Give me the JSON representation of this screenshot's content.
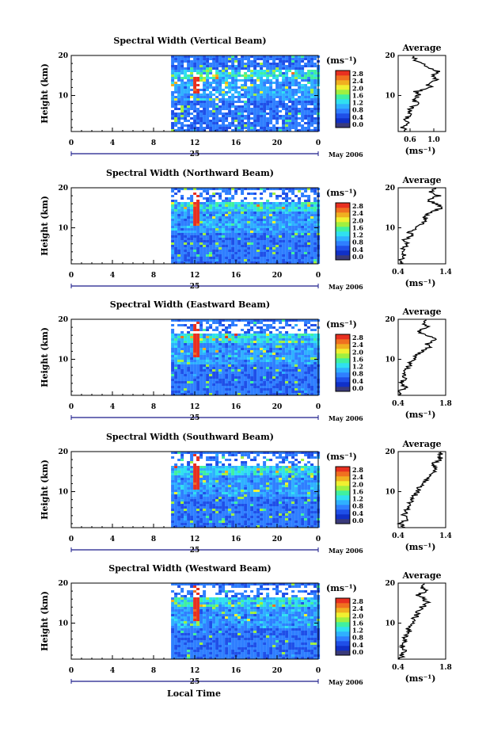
{
  "figure": {
    "bottom_axis_label": "Local Time",
    "unit_label": "(ms⁻¹)",
    "ylabel": "Height (km)",
    "avg_title": "Average",
    "date_label": "May 2006",
    "day_label": "25"
  },
  "colormap": {
    "levels": [
      "0.0",
      "0.4",
      "0.8",
      "1.2",
      "1.6",
      "2.0",
      "2.4",
      "2.8"
    ],
    "colors": [
      "#3a3a7a",
      "#1030c8",
      "#1f4fe8",
      "#2f7fff",
      "#2fb0ff",
      "#30e0f0",
      "#40f0a0",
      "#a0f040",
      "#f0f030",
      "#f0b020",
      "#f07020",
      "#e83020"
    ]
  },
  "chart_data": [
    {
      "type": "heatmap",
      "title": "Spectral Width (Vertical Beam)",
      "x_ticks": [
        "0",
        "4",
        "8",
        "12",
        "16",
        "20",
        "0"
      ],
      "y_ticks": [
        "20",
        "10"
      ],
      "xlim": [
        0,
        24
      ],
      "ylim": [
        1,
        20
      ],
      "data_start_hour": 9.7,
      "spike_hour": 11.9,
      "spike_heights_km": [
        10.5,
        15
      ],
      "gap_above_km": null,
      "average_profile": {
        "xlabel": "(ms⁻¹)",
        "x_ticks": [
          "0.6",
          "1.0"
        ],
        "xlim": [
          0.4,
          1.2
        ],
        "height_km": [
          1,
          2,
          3,
          4,
          5,
          6,
          7,
          8,
          9,
          10,
          11,
          12,
          13,
          14,
          15,
          16,
          17,
          18,
          19,
          20
        ],
        "values": [
          0.52,
          0.48,
          0.55,
          0.5,
          0.6,
          0.58,
          0.62,
          0.72,
          0.66,
          0.75,
          0.7,
          0.95,
          0.88,
          1.05,
          1.0,
          1.08,
          0.92,
          0.78,
          0.68,
          0.62
        ]
      }
    },
    {
      "type": "heatmap",
      "title": "Spectral Width (Northward Beam)",
      "x_ticks": [
        "0",
        "4",
        "8",
        "12",
        "16",
        "20",
        "0"
      ],
      "y_ticks": [
        "20",
        "10"
      ],
      "xlim": [
        0,
        24
      ],
      "ylim": [
        1,
        20
      ],
      "data_start_hour": 9.7,
      "spike_hour": 11.9,
      "spike_heights_km": [
        10.5,
        19.5
      ],
      "gap_above_km": 17,
      "average_profile": {
        "xlabel": "(ms⁻¹)",
        "x_ticks": [
          "0.4",
          "1.4"
        ],
        "xlim": [
          0.4,
          1.4
        ],
        "height_km": [
          1,
          2,
          3,
          4,
          5,
          6,
          7,
          8,
          9,
          10,
          11,
          12,
          13,
          14,
          15,
          16,
          17,
          18,
          19,
          20
        ],
        "values": [
          0.5,
          0.45,
          0.55,
          0.48,
          0.52,
          0.6,
          0.55,
          0.7,
          0.62,
          0.8,
          0.9,
          1.0,
          0.95,
          1.1,
          1.35,
          1.2,
          1.0,
          1.25,
          1.1,
          1.2
        ]
      }
    },
    {
      "type": "heatmap",
      "title": "Spectral Width (Eastward Beam)",
      "x_ticks": [
        "0",
        "4",
        "8",
        "12",
        "16",
        "20",
        "0"
      ],
      "y_ticks": [
        "20",
        "10"
      ],
      "xlim": [
        0,
        24
      ],
      "ylim": [
        1,
        20
      ],
      "data_start_hour": 9.7,
      "spike_hour": 11.9,
      "spike_heights_km": [
        10.5,
        19.5
      ],
      "gap_above_km": 17,
      "average_profile": {
        "xlabel": "(ms⁻¹)",
        "x_ticks": [
          "0.4",
          "1.8"
        ],
        "xlim": [
          0.4,
          1.8
        ],
        "height_km": [
          1,
          2,
          3,
          4,
          5,
          6,
          7,
          8,
          9,
          10,
          11,
          12,
          13,
          14,
          15,
          16,
          17,
          18,
          19,
          20
        ],
        "values": [
          0.5,
          0.45,
          0.6,
          0.5,
          0.55,
          0.62,
          0.58,
          0.7,
          0.75,
          0.85,
          0.9,
          1.1,
          1.3,
          1.25,
          1.6,
          1.2,
          1.0,
          1.3,
          1.1,
          1.2
        ]
      }
    },
    {
      "type": "heatmap",
      "title": "Spectral Width (Southward Beam)",
      "x_ticks": [
        "0",
        "4",
        "8",
        "12",
        "16",
        "20",
        "0"
      ],
      "y_ticks": [
        "20",
        "10"
      ],
      "xlim": [
        0,
        24
      ],
      "ylim": [
        1,
        20
      ],
      "data_start_hour": 9.7,
      "spike_hour": 11.9,
      "spike_heights_km": [
        10.5,
        19.5
      ],
      "gap_above_km": 17,
      "average_profile": {
        "xlabel": "(ms⁻¹)",
        "x_ticks": [
          "0.4",
          "1.4"
        ],
        "xlim": [
          0.4,
          1.4
        ],
        "height_km": [
          1,
          2,
          3,
          4,
          5,
          6,
          7,
          8,
          9,
          10,
          11,
          12,
          13,
          14,
          15,
          16,
          17,
          18,
          19,
          20
        ],
        "values": [
          0.5,
          0.45,
          0.6,
          0.52,
          0.55,
          0.6,
          0.65,
          0.7,
          0.75,
          0.8,
          0.85,
          0.95,
          1.0,
          1.1,
          1.15,
          1.2,
          1.1,
          1.3,
          1.25,
          1.35
        ]
      }
    },
    {
      "type": "heatmap",
      "title": "Spectral Width (Westward Beam)",
      "x_ticks": [
        "0",
        "4",
        "8",
        "12",
        "16",
        "20",
        "0"
      ],
      "y_ticks": [
        "20",
        "10"
      ],
      "xlim": [
        0,
        24
      ],
      "ylim": [
        1,
        20
      ],
      "data_start_hour": 9.7,
      "spike_hour": 11.9,
      "spike_heights_km": [
        10.5,
        19.5
      ],
      "gap_above_km": 17,
      "average_profile": {
        "xlabel": "(ms⁻¹)",
        "x_ticks": [
          "0.4",
          "1.8"
        ],
        "xlim": [
          0.4,
          1.8
        ],
        "height_km": [
          1,
          2,
          3,
          4,
          5,
          6,
          7,
          8,
          9,
          10,
          11,
          12,
          13,
          14,
          15,
          16,
          17,
          18,
          19,
          20
        ],
        "values": [
          0.5,
          0.48,
          0.58,
          0.52,
          0.6,
          0.58,
          0.65,
          0.72,
          0.7,
          0.8,
          0.85,
          0.95,
          1.0,
          1.1,
          1.3,
          1.15,
          1.0,
          1.2,
          1.1,
          1.15
        ]
      }
    }
  ]
}
